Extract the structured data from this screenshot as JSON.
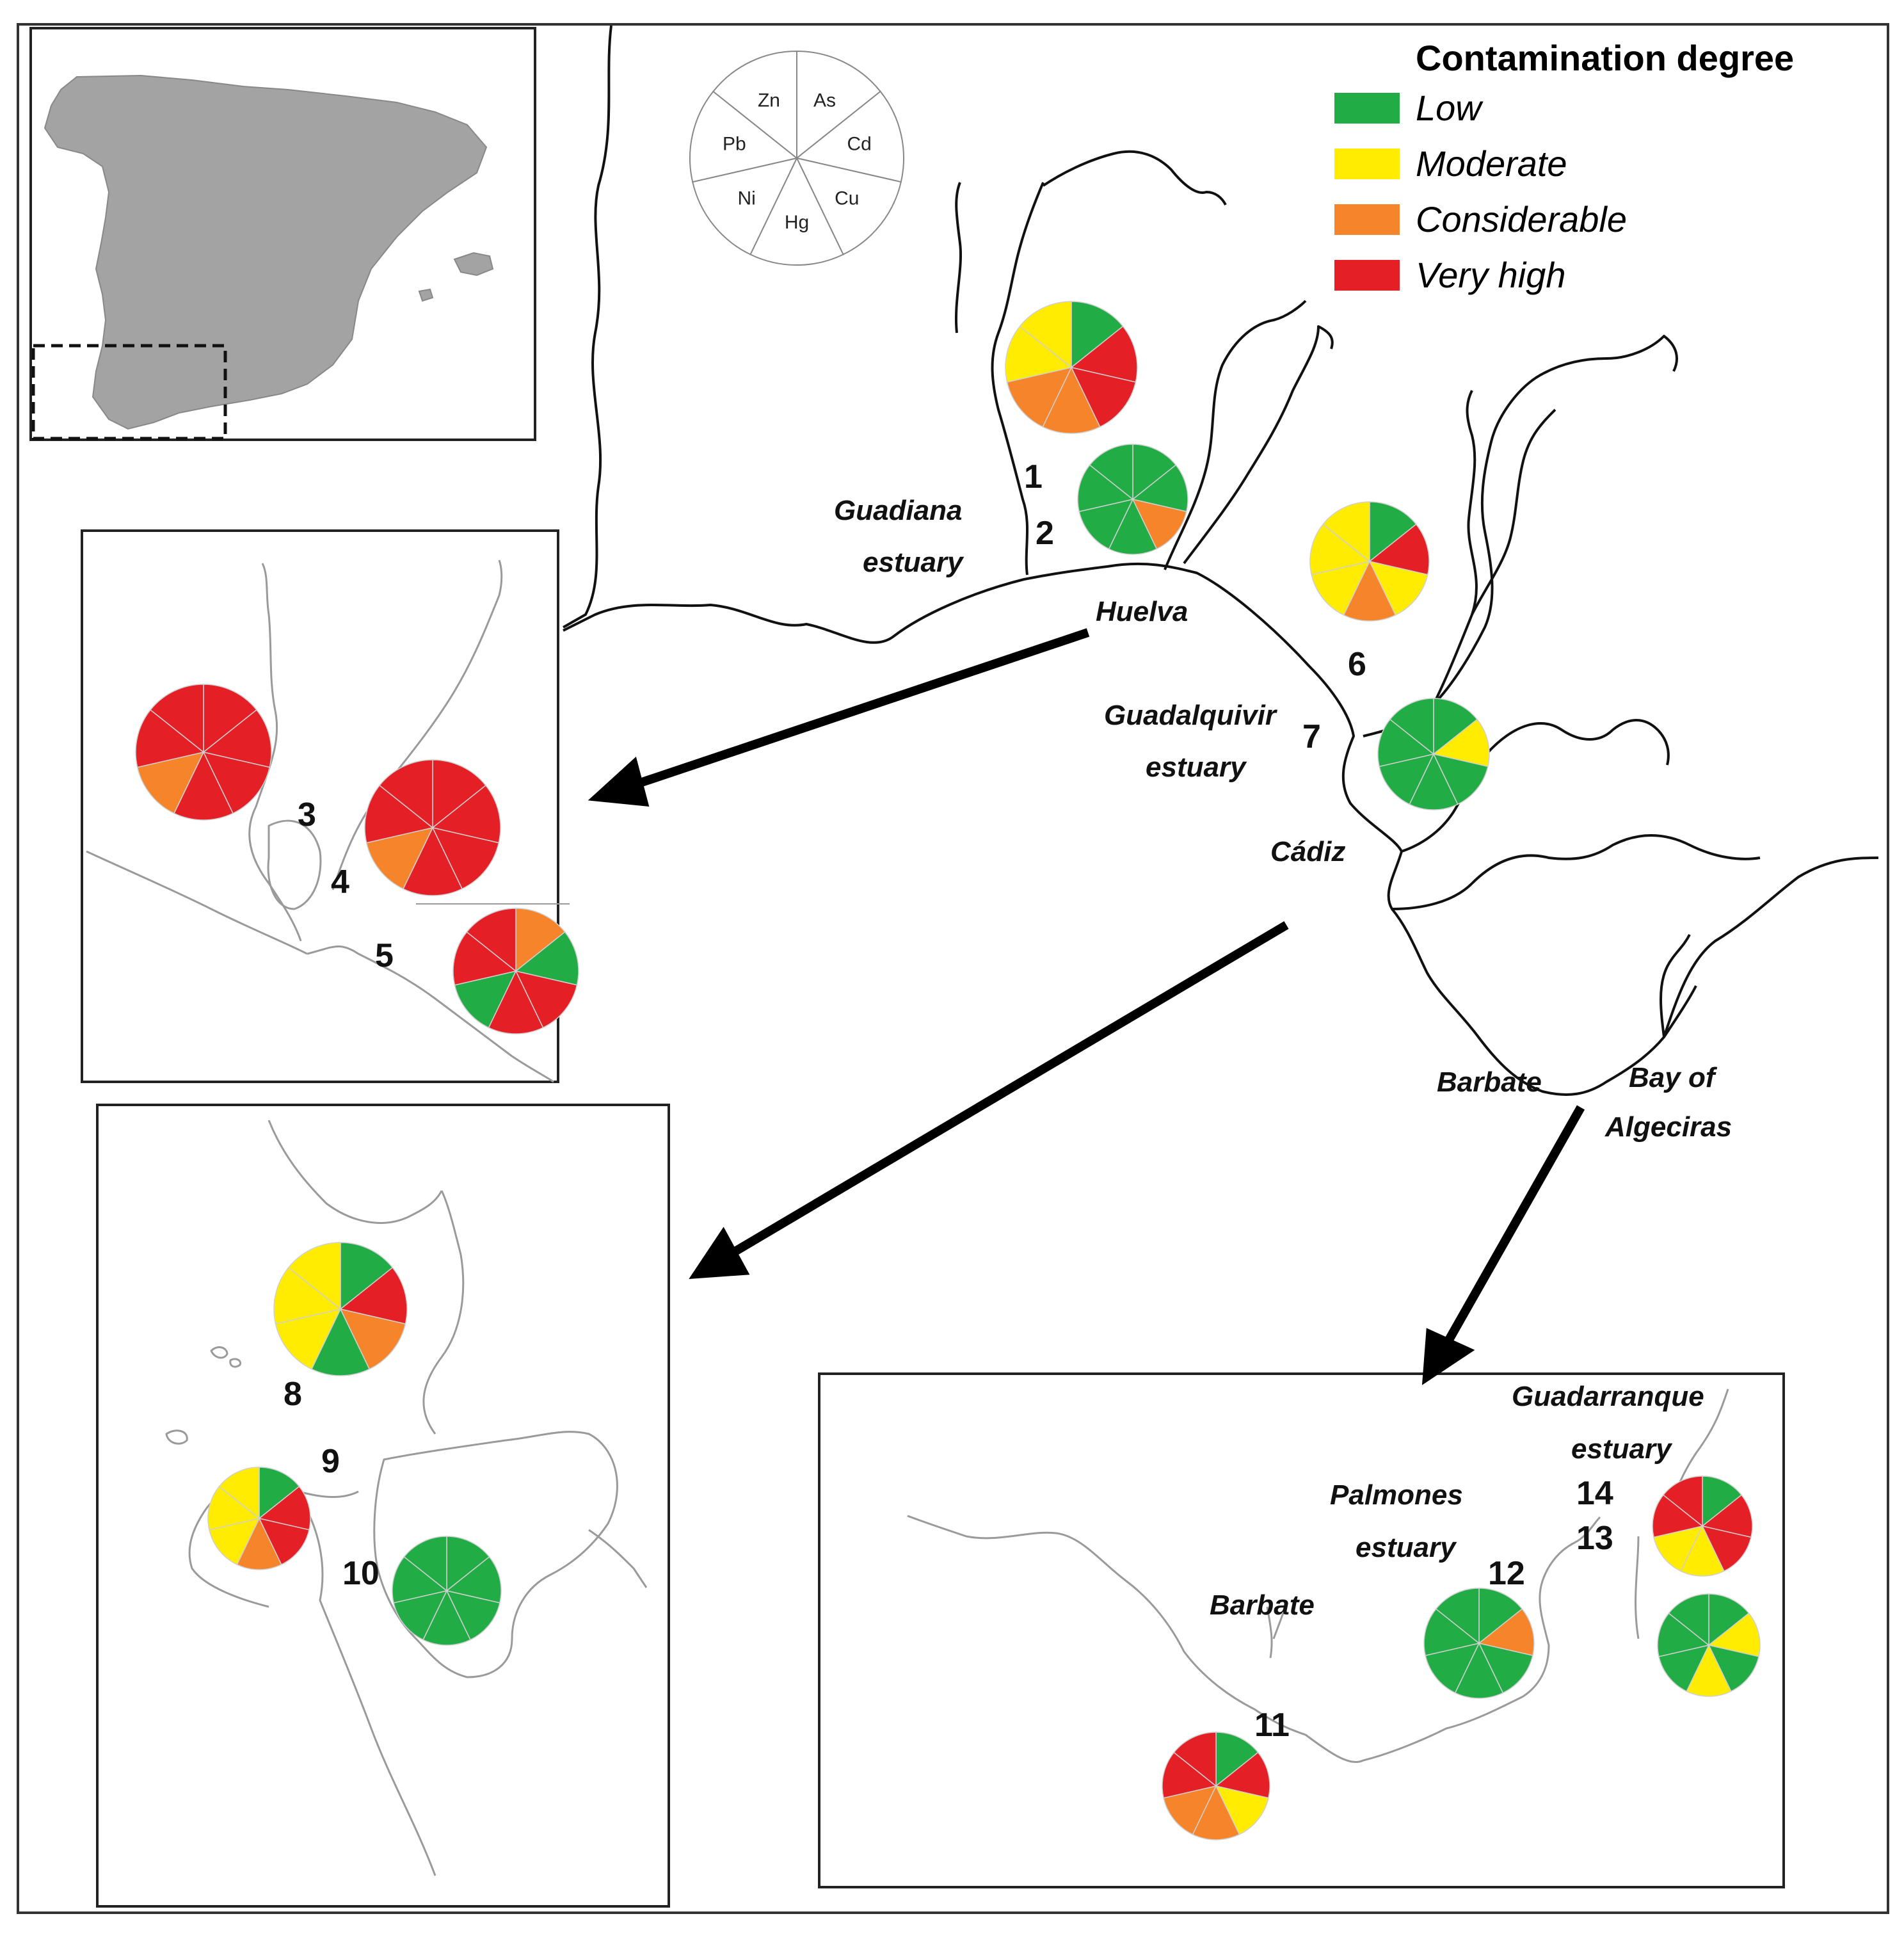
{
  "colors": {
    "Low": "#22ac45",
    "Moderate": "#ffec00",
    "Considerable": "#f5842a",
    "Very high": "#e51f26",
    "spain_fill": "#a3a3a3"
  },
  "legend": {
    "title": "Contamination degree",
    "items": [
      "Low",
      "Moderate",
      "Considerable",
      "Very high"
    ]
  },
  "pie_key": {
    "segments": [
      "As",
      "Cd",
      "Cu",
      "Hg",
      "Ni",
      "Pb",
      "Zn"
    ]
  },
  "places": {
    "guadiana_1": "Guadiana",
    "guadiana_2": "estuary",
    "huelva": "Huelva",
    "guadalquivir_1": "Guadalquivir",
    "guadalquivir_2": "estuary",
    "cadiz": "Cádiz",
    "barbate_main": "Barbate",
    "algeciras_1": "Bay of",
    "algeciras_2": "Algeciras",
    "guadarranque_1": "Guadarranque",
    "guadarranque_2": "estuary",
    "palmones_1": "Palmones",
    "palmones_2": "estuary",
    "barbate_inset": "Barbate"
  },
  "sites": [
    {
      "id": "1",
      "label": "1",
      "metals": [
        "Low",
        "Very high",
        "Very high",
        "Considerable",
        "Considerable",
        "Moderate",
        "Moderate"
      ]
    },
    {
      "id": "2",
      "label": "2",
      "metals": [
        "Low",
        "Low",
        "Considerable",
        "Low",
        "Low",
        "Low",
        "Low"
      ]
    },
    {
      "id": "3",
      "label": "3",
      "metals": [
        "Very high",
        "Very high",
        "Very high",
        "Very high",
        "Considerable",
        "Very high",
        "Very high"
      ]
    },
    {
      "id": "4",
      "label": "4",
      "metals": [
        "Very high",
        "Very high",
        "Very high",
        "Very high",
        "Considerable",
        "Very high",
        "Very high"
      ]
    },
    {
      "id": "5",
      "label": "5",
      "metals": [
        "Considerable",
        "Low",
        "Very high",
        "Very high",
        "Low",
        "Very high",
        "Very high"
      ]
    },
    {
      "id": "6",
      "label": "6",
      "metals": [
        "Low",
        "Very high",
        "Moderate",
        "Considerable",
        "Moderate",
        "Moderate",
        "Moderate"
      ]
    },
    {
      "id": "7",
      "label": "7",
      "metals": [
        "Low",
        "Moderate",
        "Low",
        "Low",
        "Low",
        "Low",
        "Low"
      ]
    },
    {
      "id": "8",
      "label": "8",
      "metals": [
        "Low",
        "Very high",
        "Considerable",
        "Low",
        "Moderate",
        "Moderate",
        "Moderate"
      ]
    },
    {
      "id": "9",
      "label": "9",
      "metals": [
        "Low",
        "Very high",
        "Very high",
        "Considerable",
        "Moderate",
        "Moderate",
        "Moderate"
      ]
    },
    {
      "id": "10",
      "label": "10",
      "metals": [
        "Low",
        "Low",
        "Low",
        "Low",
        "Low",
        "Low",
        "Low"
      ]
    },
    {
      "id": "11",
      "label": "11",
      "metals": [
        "Low",
        "Very high",
        "Moderate",
        "Considerable",
        "Considerable",
        "Very high",
        "Very high"
      ]
    },
    {
      "id": "12",
      "label": "12",
      "metals": [
        "Low",
        "Considerable",
        "Low",
        "Low",
        "Low",
        "Low",
        "Low"
      ]
    },
    {
      "id": "13",
      "label": "13",
      "metals": [
        "Low",
        "Moderate",
        "Low",
        "Moderate",
        "Low",
        "Low",
        "Low"
      ]
    },
    {
      "id": "14",
      "label": "14",
      "metals": [
        "Low",
        "Very high",
        "Very high",
        "Moderate",
        "Moderate",
        "Very high",
        "Very high"
      ]
    }
  ]
}
